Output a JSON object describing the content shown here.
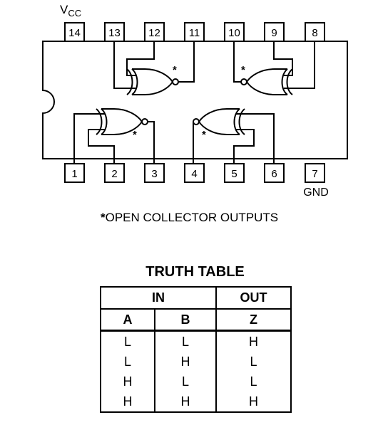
{
  "pins": {
    "top": [
      "14",
      "13",
      "12",
      "11",
      "10",
      "9",
      "8"
    ],
    "bottom": [
      "1",
      "2",
      "3",
      "4",
      "5",
      "6",
      "7"
    ]
  },
  "labels": {
    "vcc_main": "V",
    "vcc_sub": "CC",
    "gnd": "GND",
    "asterisk": "*"
  },
  "note": {
    "star": "*",
    "text": "OPEN COLLECTOR OUTPUTS"
  },
  "truth_table": {
    "title": "TRUTH TABLE",
    "group_in": "IN",
    "group_out": "OUT",
    "columns": [
      "A",
      "B",
      "Z"
    ],
    "rows": [
      [
        "L",
        "L",
        "H"
      ],
      [
        "L",
        "H",
        "L"
      ],
      [
        "H",
        "L",
        "L"
      ],
      [
        "H",
        "H",
        "H"
      ]
    ]
  }
}
